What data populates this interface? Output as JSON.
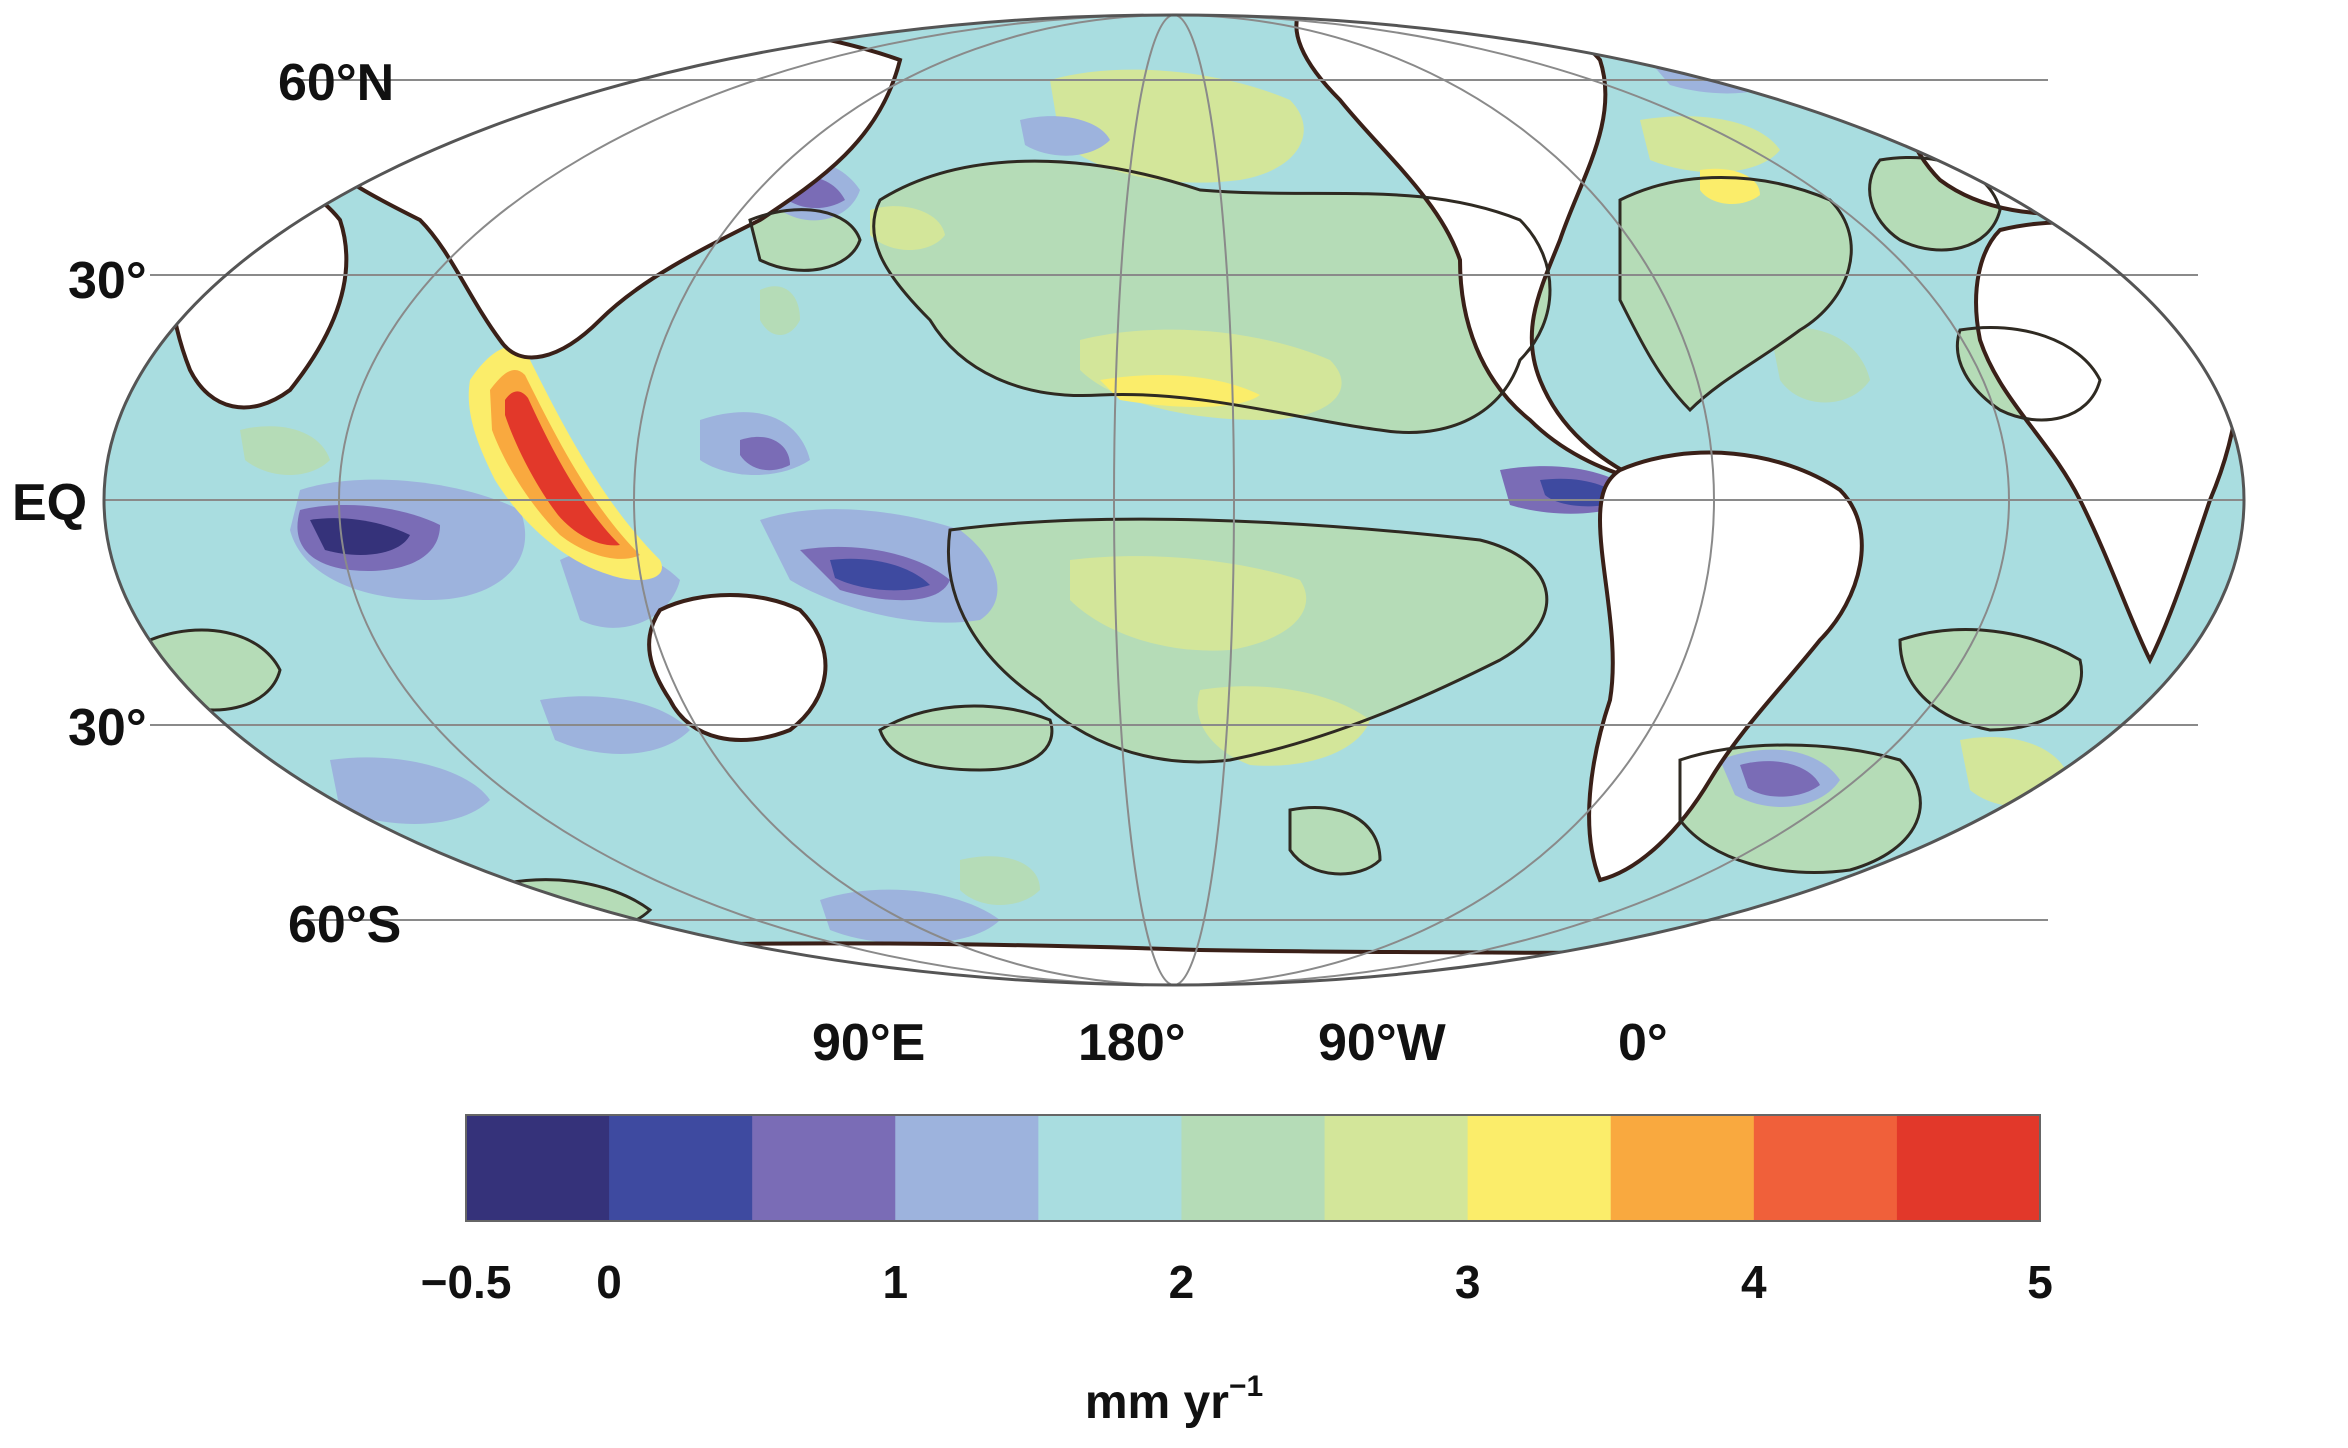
{
  "map": {
    "projection": "Mollweide, centered on the Pacific",
    "latitude_labels": [
      "60°N",
      "30°",
      "EQ",
      "30°",
      "60°S"
    ],
    "longitude_labels": [
      "90°E",
      "180°",
      "90°W",
      "0°"
    ],
    "land_color": "#ffffff",
    "coastline_color": "#3a2018",
    "contour_color": "#2f2a22"
  },
  "colorbar": {
    "unit": "mm yr",
    "unit_superscript": "−1",
    "tick_labels": [
      "−0.5",
      "0",
      "1",
      "2",
      "3",
      "4",
      "5"
    ],
    "tick_values": [
      -0.5,
      0,
      1,
      2,
      3,
      4,
      5
    ],
    "bins": [
      {
        "from": -0.5,
        "to": 0,
        "color": "#35327a"
      },
      {
        "from": 0,
        "to": 0.5,
        "color": "#3e4aa0"
      },
      {
        "from": 0.5,
        "to": 1,
        "color": "#7a6cb6"
      },
      {
        "from": 1,
        "to": 1.5,
        "color": "#9db3dd"
      },
      {
        "from": 1.5,
        "to": 2,
        "color": "#a9dde0"
      },
      {
        "from": 2,
        "to": 2.5,
        "color": "#b5dcb7"
      },
      {
        "from": 2.5,
        "to": 3,
        "color": "#d3e69a"
      },
      {
        "from": 3,
        "to": 3.5,
        "color": "#fbed6a"
      },
      {
        "from": 3.5,
        "to": 4,
        "color": "#f9a93f"
      },
      {
        "from": 4,
        "to": 4.5,
        "color": "#f0603a"
      },
      {
        "from": 4.5,
        "to": 5,
        "color": "#e2382a"
      }
    ]
  }
}
